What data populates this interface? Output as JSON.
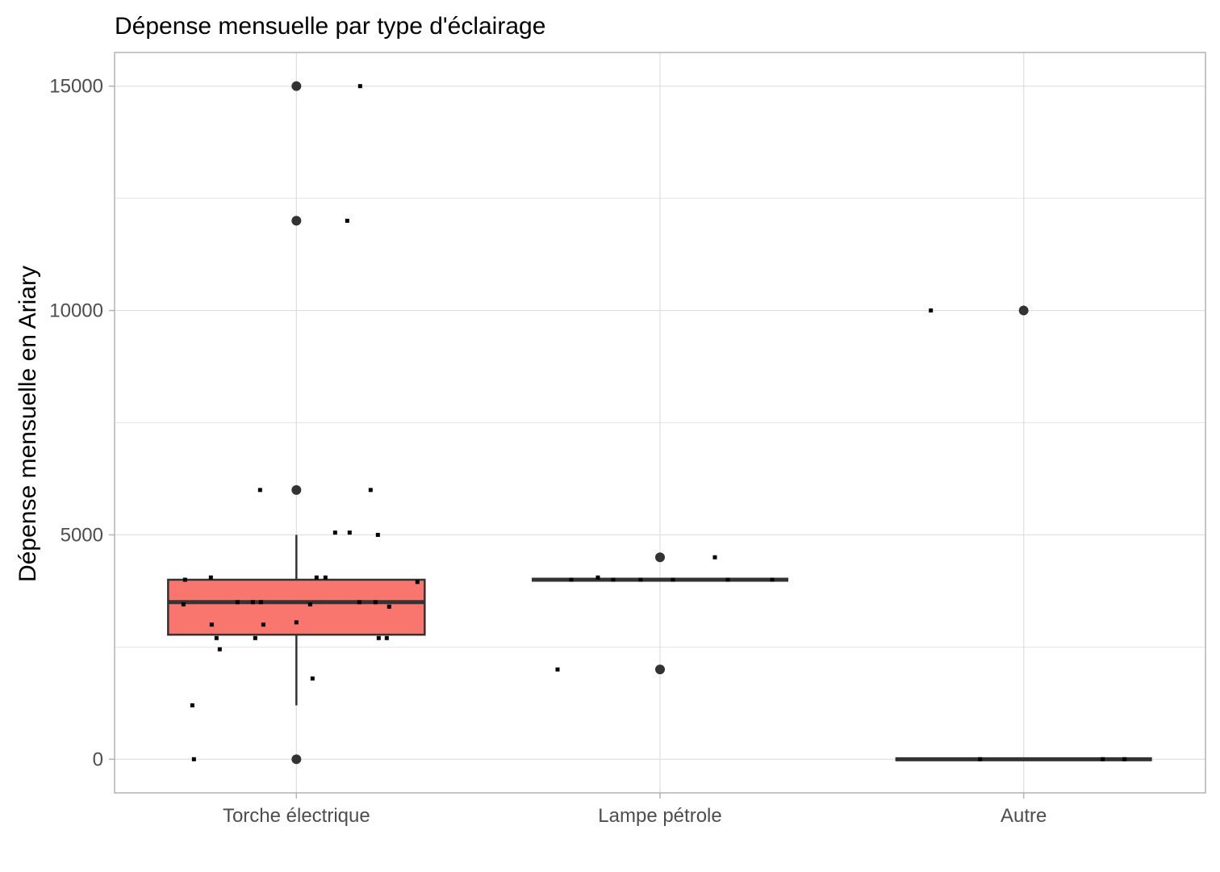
{
  "chart_data": {
    "type": "boxplot",
    "title": "Dépense mensuelle par type d'éclairage",
    "xlabel": "",
    "ylabel": "Dépense mensuelle en Ariary",
    "categories": [
      "Torche électrique",
      "Lampe pétrole",
      "Autre"
    ],
    "ylim": [
      -750,
      15750
    ],
    "yticks": [
      0,
      5000,
      10000,
      15000
    ],
    "grid": true,
    "legend": "none",
    "colors": {
      "box_fill": "#F8766D",
      "line": "#333333",
      "grid": "#dedede",
      "border": "#b3b3b3",
      "tick_label": "#4d4d4d",
      "point": "#000000"
    },
    "boxes": [
      {
        "category": "Torche électrique",
        "fill": "#F8766D",
        "q1": 2775,
        "median": 3500,
        "q3": 4000,
        "whisker_low": 1200,
        "whisker_high": 5000,
        "outliers": [
          15000,
          12000,
          6000,
          0
        ]
      },
      {
        "category": "Lampe pétrole",
        "fill": "#F8766D",
        "q1": 4000,
        "median": 4000,
        "q3": 4000,
        "whisker_low": 4000,
        "whisker_high": 4000,
        "outliers": [
          4500,
          2000
        ]
      },
      {
        "category": "Autre",
        "fill": "#F8766D",
        "q1": 0,
        "median": 0,
        "q3": 0,
        "whisker_low": 0,
        "whisker_high": 0,
        "outliers": [
          10000
        ]
      }
    ],
    "jitter_points": [
      {
        "category": "Torche électrique",
        "x": 0.79,
        "y": 15000
      },
      {
        "category": "Torche électrique",
        "x": 0.63,
        "y": 12000
      },
      {
        "category": "Torche électrique",
        "x": -0.45,
        "y": 6000
      },
      {
        "category": "Torche électrique",
        "x": 0.92,
        "y": 6000
      },
      {
        "category": "Torche électrique",
        "x": 0.48,
        "y": 5050
      },
      {
        "category": "Torche électrique",
        "x": 0.66,
        "y": 5050
      },
      {
        "category": "Torche électrique",
        "x": 1.01,
        "y": 5000
      },
      {
        "category": "Torche électrique",
        "x": -1.38,
        "y": 4000
      },
      {
        "category": "Torche électrique",
        "x": -1.06,
        "y": 4050
      },
      {
        "category": "Torche électrique",
        "x": 0.25,
        "y": 4050
      },
      {
        "category": "Torche électrique",
        "x": 0.36,
        "y": 4050
      },
      {
        "category": "Torche électrique",
        "x": 1.5,
        "y": 3950
      },
      {
        "category": "Torche électrique",
        "x": -1.4,
        "y": 3450
      },
      {
        "category": "Torche électrique",
        "x": -0.73,
        "y": 3500
      },
      {
        "category": "Torche électrique",
        "x": -0.54,
        "y": 3500
      },
      {
        "category": "Torche électrique",
        "x": -0.44,
        "y": 3500
      },
      {
        "category": "Torche électrique",
        "x": 0.17,
        "y": 3450
      },
      {
        "category": "Torche électrique",
        "x": 0.78,
        "y": 3500
      },
      {
        "category": "Torche électrique",
        "x": 0.98,
        "y": 3500
      },
      {
        "category": "Torche électrique",
        "x": 1.15,
        "y": 3400
      },
      {
        "category": "Torche électrique",
        "x": -1.05,
        "y": 3000
      },
      {
        "category": "Torche électrique",
        "x": -0.41,
        "y": 3000
      },
      {
        "category": "Torche électrique",
        "x": 0.0,
        "y": 3050
      },
      {
        "category": "Torche électrique",
        "x": -0.99,
        "y": 2700
      },
      {
        "category": "Torche électrique",
        "x": -0.51,
        "y": 2700
      },
      {
        "category": "Torche électrique",
        "x": 1.02,
        "y": 2700
      },
      {
        "category": "Torche électrique",
        "x": 1.12,
        "y": 2700
      },
      {
        "category": "Torche électrique",
        "x": -0.95,
        "y": 2450
      },
      {
        "category": "Torche électrique",
        "x": 0.2,
        "y": 1800
      },
      {
        "category": "Torche électrique",
        "x": -1.29,
        "y": 1200
      },
      {
        "category": "Torche électrique",
        "x": -1.27,
        "y": 0
      },
      {
        "category": "Lampe pétrole",
        "x": -1.1,
        "y": 4000
      },
      {
        "category": "Lampe pétrole",
        "x": -0.77,
        "y": 4050
      },
      {
        "category": "Lampe pétrole",
        "x": -0.58,
        "y": 4000
      },
      {
        "category": "Lampe pétrole",
        "x": -0.24,
        "y": 4000
      },
      {
        "category": "Lampe pétrole",
        "x": 0.16,
        "y": 4000
      },
      {
        "category": "Lampe pétrole",
        "x": 0.84,
        "y": 4000
      },
      {
        "category": "Lampe pétrole",
        "x": 1.39,
        "y": 4000
      },
      {
        "category": "Lampe pétrole",
        "x": 0.68,
        "y": 4500
      },
      {
        "category": "Lampe pétrole",
        "x": -1.27,
        "y": 2000
      },
      {
        "category": "Autre",
        "x": -1.15,
        "y": 10000
      },
      {
        "category": "Autre",
        "x": -0.54,
        "y": 0
      },
      {
        "category": "Autre",
        "x": 0.98,
        "y": 0
      },
      {
        "category": "Autre",
        "x": 1.25,
        "y": 0
      }
    ]
  }
}
